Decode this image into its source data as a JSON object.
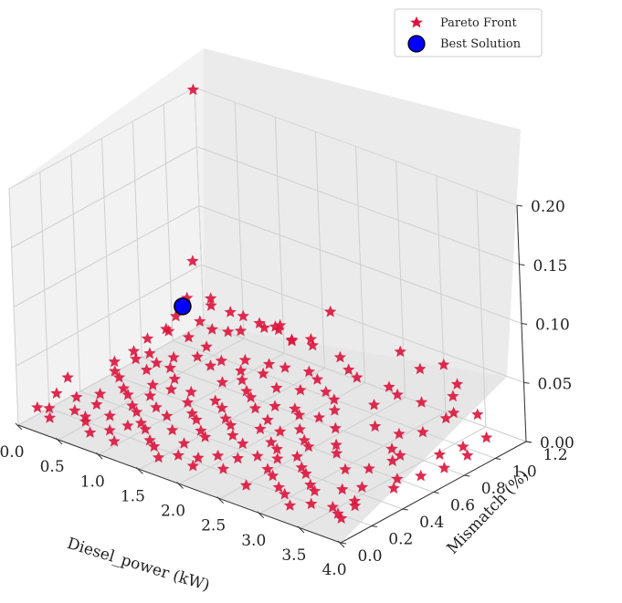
{
  "chart_data": {
    "type": "scatter",
    "projection": "3d",
    "xlabel": "Diesel_power (kW)",
    "ylabel": "Mismatch (%)",
    "zlabel": "",
    "xlim": [
      0.0,
      4.0
    ],
    "ylim": [
      0.0,
      1.2
    ],
    "zlim": [
      0.0,
      0.2
    ],
    "x_ticks": [
      "0.0",
      "0.5",
      "1.0",
      "1.5",
      "2.0",
      "2.5",
      "3.0",
      "3.5",
      "4.0"
    ],
    "y_ticks": [
      "0.0",
      "0.2",
      "0.4",
      "0.6",
      "0.8",
      "1.0",
      "1.2"
    ],
    "z_ticks": [
      "0.00",
      "0.05",
      "0.10",
      "0.15",
      "0.20"
    ],
    "grid": true,
    "legend": {
      "placement": "top-right",
      "entries": [
        {
          "label": "Pareto Front",
          "marker": "star",
          "color": "#dc143c"
        },
        {
          "label": "Best Solution",
          "marker": "circle",
          "color": "#0000ff"
        }
      ]
    },
    "series": [
      {
        "name": "Pareto Front",
        "marker": "star",
        "color": "#dc143c",
        "points": [
          [
            0.02,
            1.18,
            0.2
          ],
          [
            0.05,
            1.12,
            0.06
          ],
          [
            0.1,
            1.05,
            0.035
          ],
          [
            0.15,
            0.95,
            0.028
          ],
          [
            0.3,
            1.1,
            0.03
          ],
          [
            0.25,
            0.85,
            0.025
          ],
          [
            0.4,
            0.9,
            0.02
          ],
          [
            0.5,
            1.0,
            0.022
          ],
          [
            0.6,
            1.15,
            0.025
          ],
          [
            0.7,
            1.08,
            0.02
          ],
          [
            0.8,
            1.18,
            0.018
          ],
          [
            0.9,
            1.2,
            0.02
          ],
          [
            1.0,
            1.18,
            0.025
          ],
          [
            1.2,
            1.15,
            0.02
          ],
          [
            1.4,
            1.18,
            0.018
          ],
          [
            1.6,
            1.2,
            0.05
          ],
          [
            1.8,
            1.15,
            0.02
          ],
          [
            2.0,
            1.1,
            0.018
          ],
          [
            2.2,
            1.05,
            0.02
          ],
          [
            2.5,
            1.18,
            0.04
          ],
          [
            2.8,
            1.15,
            0.035
          ],
          [
            3.0,
            1.2,
            0.04
          ],
          [
            3.2,
            1.18,
            0.03
          ],
          [
            3.3,
            1.1,
            0.028
          ],
          [
            3.1,
            1.0,
            0.025
          ],
          [
            2.9,
            0.95,
            0.03
          ],
          [
            2.7,
            0.9,
            0.02
          ],
          [
            2.6,
            1.05,
            0.022
          ],
          [
            3.4,
            1.05,
            0.02
          ],
          [
            3.5,
            0.95,
            0.025
          ],
          [
            3.6,
            1.1,
            0.02
          ],
          [
            3.4,
            0.85,
            0.018
          ],
          [
            3.2,
            0.8,
            0.015
          ],
          [
            3.0,
            0.75,
            0.02
          ],
          [
            3.3,
            0.7,
            0.012
          ],
          [
            3.5,
            0.65,
            0.015
          ],
          [
            3.6,
            0.55,
            0.02
          ],
          [
            3.4,
            0.5,
            0.012
          ],
          [
            3.2,
            0.45,
            0.01
          ],
          [
            3.0,
            0.5,
            0.015
          ],
          [
            2.8,
            0.6,
            0.01
          ],
          [
            2.6,
            0.7,
            0.012
          ],
          [
            2.4,
            0.8,
            0.015
          ],
          [
            2.2,
            0.9,
            0.012
          ],
          [
            2.0,
            0.95,
            0.01
          ],
          [
            1.8,
            1.0,
            0.012
          ],
          [
            1.6,
            1.05,
            0.01
          ],
          [
            1.4,
            1.0,
            0.012
          ],
          [
            1.2,
            1.0,
            0.01
          ],
          [
            1.0,
            0.95,
            0.012
          ],
          [
            0.8,
            0.9,
            0.01
          ],
          [
            0.6,
            0.85,
            0.012
          ],
          [
            0.4,
            0.8,
            0.01
          ],
          [
            0.2,
            0.75,
            0.012
          ],
          [
            0.1,
            0.7,
            0.015
          ],
          [
            0.05,
            0.6,
            0.012
          ],
          [
            0.15,
            0.55,
            0.01
          ],
          [
            0.3,
            0.5,
            0.012
          ],
          [
            0.45,
            0.45,
            0.01
          ],
          [
            0.6,
            0.4,
            0.012
          ],
          [
            0.75,
            0.35,
            0.01
          ],
          [
            0.9,
            0.3,
            0.012
          ],
          [
            1.05,
            0.25,
            0.01
          ],
          [
            1.2,
            0.2,
            0.012
          ],
          [
            1.35,
            0.15,
            0.01
          ],
          [
            1.5,
            0.1,
            0.012
          ],
          [
            1.65,
            0.05,
            0.01
          ],
          [
            1.8,
            0.1,
            0.012
          ],
          [
            1.95,
            0.15,
            0.01
          ],
          [
            2.1,
            0.2,
            0.012
          ],
          [
            2.25,
            0.25,
            0.01
          ],
          [
            2.4,
            0.3,
            0.012
          ],
          [
            2.55,
            0.35,
            0.01
          ],
          [
            2.7,
            0.4,
            0.012
          ],
          [
            2.85,
            0.35,
            0.01
          ],
          [
            3.0,
            0.3,
            0.012
          ],
          [
            3.15,
            0.25,
            0.01
          ],
          [
            3.3,
            0.2,
            0.012
          ],
          [
            3.45,
            0.3,
            0.01
          ],
          [
            3.6,
            0.35,
            0.012
          ],
          [
            3.7,
            0.25,
            0.01
          ],
          [
            3.8,
            0.2,
            0.012
          ],
          [
            3.9,
            0.4,
            0.015
          ],
          [
            3.75,
            0.5,
            0.012
          ],
          [
            3.85,
            0.6,
            0.01
          ],
          [
            3.95,
            0.7,
            0.012
          ],
          [
            3.7,
            0.8,
            0.01
          ],
          [
            3.8,
            0.9,
            0.012
          ],
          [
            3.9,
            1.0,
            0.015
          ],
          [
            3.95,
            0.85,
            0.012
          ],
          [
            0.05,
            0.3,
            0.02
          ],
          [
            0.1,
            0.2,
            0.015
          ],
          [
            0.2,
            0.1,
            0.012
          ],
          [
            0.3,
            0.05,
            0.01
          ],
          [
            0.15,
            0.05,
            0.015
          ],
          [
            0.25,
            0.25,
            0.012
          ],
          [
            0.35,
            0.35,
            0.01
          ],
          [
            0.5,
            0.25,
            0.012
          ],
          [
            0.55,
            0.15,
            0.01
          ],
          [
            0.65,
            0.1,
            0.012
          ],
          [
            0.8,
            0.05,
            0.01
          ],
          [
            0.95,
            0.1,
            0.012
          ],
          [
            1.1,
            0.05,
            0.01
          ],
          [
            0.45,
            0.6,
            0.015
          ],
          [
            0.55,
            0.7,
            0.012
          ],
          [
            0.7,
            0.65,
            0.01
          ],
          [
            0.85,
            0.55,
            0.012
          ],
          [
            1.0,
            0.6,
            0.01
          ],
          [
            1.15,
            0.5,
            0.012
          ],
          [
            1.3,
            0.45,
            0.01
          ],
          [
            1.45,
            0.4,
            0.012
          ],
          [
            1.6,
            0.35,
            0.01
          ],
          [
            1.75,
            0.3,
            0.012
          ],
          [
            1.9,
            0.4,
            0.01
          ],
          [
            2.05,
            0.5,
            0.012
          ],
          [
            2.2,
            0.55,
            0.01
          ],
          [
            2.35,
            0.6,
            0.012
          ],
          [
            2.5,
            0.55,
            0.01
          ],
          [
            2.65,
            0.5,
            0.012
          ],
          [
            1.1,
            0.75,
            0.01
          ],
          [
            1.25,
            0.8,
            0.012
          ],
          [
            1.4,
            0.75,
            0.01
          ],
          [
            1.55,
            0.7,
            0.012
          ],
          [
            1.7,
            0.65,
            0.01
          ],
          [
            1.85,
            0.7,
            0.012
          ],
          [
            2.0,
            0.75,
            0.01
          ],
          [
            2.15,
            0.7,
            0.012
          ],
          [
            2.3,
            0.75,
            0.01
          ],
          [
            0.9,
            1.1,
            0.03
          ],
          [
            1.1,
            1.12,
            0.028
          ],
          [
            1.3,
            1.1,
            0.025
          ],
          [
            1.5,
            1.12,
            0.03
          ],
          [
            0.7,
            1.0,
            0.025
          ],
          [
            0.5,
            1.12,
            0.028
          ],
          [
            0.35,
            1.0,
            0.025
          ],
          [
            0.2,
            1.15,
            0.03
          ],
          [
            0.12,
            0.9,
            0.02
          ],
          [
            0.08,
            0.8,
            0.018
          ],
          [
            0.22,
            0.65,
            0.015
          ],
          [
            0.38,
            0.7,
            0.012
          ],
          [
            0.62,
            0.55,
            0.01
          ],
          [
            0.78,
            0.45,
            0.012
          ],
          [
            0.95,
            0.4,
            0.01
          ],
          [
            1.18,
            0.35,
            0.012
          ],
          [
            1.3,
            0.6,
            0.01
          ],
          [
            1.48,
            0.55,
            0.012
          ],
          [
            1.62,
            0.5,
            0.01
          ],
          [
            1.78,
            0.45,
            0.012
          ],
          [
            1.95,
            0.6,
            0.01
          ],
          [
            2.12,
            0.35,
            0.012
          ],
          [
            2.28,
            0.45,
            0.01
          ],
          [
            2.45,
            0.4,
            0.012
          ],
          [
            2.62,
            0.25,
            0.01
          ],
          [
            2.78,
            0.2,
            0.012
          ],
          [
            2.95,
            0.15,
            0.01
          ],
          [
            3.12,
            0.1,
            0.012
          ],
          [
            3.28,
            0.05,
            0.01
          ],
          [
            3.45,
            0.1,
            0.012
          ],
          [
            3.62,
            0.15,
            0.01
          ],
          [
            3.78,
            0.1,
            0.012
          ],
          [
            3.92,
            0.05,
            0.015
          ],
          [
            0.42,
            0.15,
            0.012
          ],
          [
            0.72,
            0.22,
            0.01
          ],
          [
            1.02,
            0.18,
            0.012
          ],
          [
            1.38,
            0.28,
            0.01
          ],
          [
            1.68,
            0.2,
            0.012
          ],
          [
            2.02,
            0.08,
            0.01
          ],
          [
            2.32,
            0.12,
            0.012
          ],
          [
            2.68,
            0.08,
            0.01
          ],
          [
            0.58,
            0.92,
            0.015
          ],
          [
            0.82,
            0.82,
            0.012
          ],
          [
            1.08,
            0.88,
            0.01
          ],
          [
            1.32,
            0.9,
            0.012
          ],
          [
            1.58,
            0.85,
            0.01
          ],
          [
            1.82,
            0.88,
            0.012
          ]
        ]
      },
      {
        "name": "Best Solution",
        "marker": "circle",
        "color": "#0000ff",
        "points": [
          [
            0.18,
            0.98,
            0.035
          ]
        ]
      }
    ]
  }
}
